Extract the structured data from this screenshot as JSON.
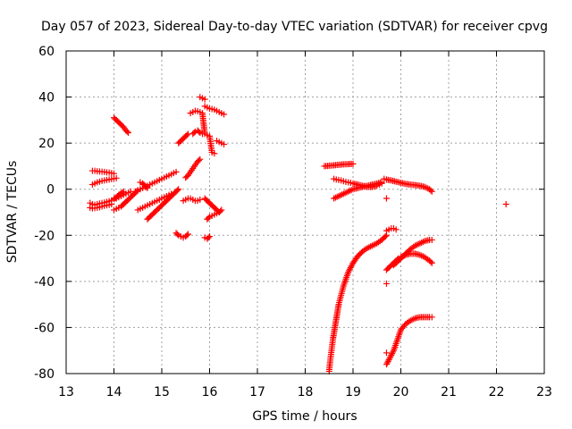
{
  "chart_data": {
    "type": "scatter",
    "title": "Day 057 of 2023, Sidereal Day-to-day VTEC variation (SDTVAR) for receiver cpvg",
    "xlabel": "GPS time / hours",
    "ylabel": "SDTVAR / TECUs",
    "xlim": [
      13,
      23
    ],
    "ylim": [
      -80,
      60
    ],
    "xticks": [
      "13",
      "14",
      "15",
      "16",
      "17",
      "18",
      "19",
      "20",
      "21",
      "22",
      "23"
    ],
    "yticks": [
      "60",
      "40",
      "20",
      "0",
      "-20",
      "-40",
      "-60",
      "-80"
    ],
    "grid": true,
    "marker": "plus",
    "color": "#ff0000",
    "series": [
      {
        "name": "arc-a1",
        "x": [
          13.55,
          13.6,
          13.65,
          13.7,
          13.75,
          13.8,
          13.85,
          13.9,
          13.95,
          14.0
        ],
        "y": [
          8,
          8,
          7.8,
          7.7,
          7.6,
          7.5,
          7.3,
          7.2,
          7.0,
          6.8
        ]
      },
      {
        "name": "arc-a2",
        "x": [
          13.55,
          13.6,
          13.65,
          13.7,
          13.75,
          13.8,
          13.85,
          13.9,
          13.95,
          14.0,
          14.05
        ],
        "y": [
          2,
          2.5,
          3,
          3.3,
          3.6,
          3.8,
          4.0,
          4.2,
          4.4,
          4.6,
          4.8
        ]
      },
      {
        "name": "arc-a3",
        "x": [
          13.5,
          13.55,
          13.6,
          13.65,
          13.7,
          13.75,
          13.8,
          13.85,
          13.9,
          13.95,
          14.0,
          14.05,
          14.1,
          14.15,
          14.2
        ],
        "y": [
          -6,
          -6.5,
          -6.8,
          -6.5,
          -6.2,
          -6,
          -5.8,
          -5.5,
          -5.2,
          -4.8,
          -4.3,
          -3.5,
          -2.5,
          -1.8,
          -1
        ]
      },
      {
        "name": "arc-a4",
        "x": [
          13.5,
          13.55,
          13.6,
          13.65,
          13.7,
          13.75,
          13.8,
          13.85,
          13.9,
          13.95
        ],
        "y": [
          -8,
          -8.3,
          -8.2,
          -8,
          -7.8,
          -7.5,
          -7.2,
          -7,
          -6.8,
          -6.5
        ]
      },
      {
        "name": "arc-b1",
        "x": [
          14.0,
          14.05,
          14.1,
          14.15,
          14.2,
          14.25,
          14.3
        ],
        "y": [
          31,
          30,
          29,
          28,
          27,
          25.5,
          24.5
        ]
      },
      {
        "name": "arc-b2",
        "x": [
          14.0,
          14.05,
          14.1,
          14.15,
          14.2,
          14.25,
          14.3,
          14.35,
          14.4,
          14.45,
          14.5
        ],
        "y": [
          -9,
          -8.5,
          -8,
          -7.5,
          -6.5,
          -5.5,
          -4.5,
          -3.5,
          -2.5,
          -1.5,
          -0.5
        ]
      },
      {
        "name": "arc-b3",
        "x": [
          14.05,
          14.1,
          14.15,
          14.2,
          14.25,
          14.3,
          14.35
        ],
        "y": [
          -4,
          -3.5,
          -3,
          -2.5,
          -2,
          -1.5,
          -1
        ]
      },
      {
        "name": "arc-c1",
        "x": [
          14.45,
          14.5,
          14.55,
          14.6,
          14.65,
          14.7,
          14.75,
          14.8,
          14.85,
          14.9,
          14.95,
          15.0,
          15.05,
          15.1,
          15.15,
          15.2,
          15.25,
          15.3
        ],
        "y": [
          -1,
          -0.5,
          0,
          0.5,
          1,
          1.5,
          2,
          2.5,
          3,
          3.5,
          4,
          4.5,
          5,
          5.5,
          6,
          6.5,
          7,
          7.5
        ]
      },
      {
        "name": "arc-c2",
        "x": [
          14.5,
          14.55,
          14.6,
          14.65,
          14.7,
          14.75,
          14.8,
          14.85,
          14.9,
          14.95,
          15.0,
          15.05,
          15.1,
          15.15,
          15.2
        ],
        "y": [
          -9,
          -8.5,
          -8,
          -7.5,
          -7,
          -6.5,
          -6,
          -5.5,
          -5,
          -4.5,
          -4,
          -3.5,
          -3,
          -2.5,
          -2
        ]
      },
      {
        "name": "arc-c3",
        "x": [
          14.7,
          14.75,
          14.8,
          14.85,
          14.9,
          14.95,
          15.0,
          15.05,
          15.1,
          15.15,
          15.2,
          15.25,
          15.3,
          15.35
        ],
        "y": [
          -13,
          -12,
          -11,
          -10,
          -9,
          -8,
          -7,
          -6,
          -5,
          -4,
          -3,
          -2,
          -1,
          0
        ]
      },
      {
        "name": "arc-c4",
        "x": [
          14.55,
          14.6,
          14.65,
          14.7
        ],
        "y": [
          3,
          2.5,
          1.5,
          0.5
        ]
      },
      {
        "name": "arc-d1",
        "x": [
          15.3,
          15.35,
          15.4,
          15.45,
          15.5,
          15.55
        ],
        "y": [
          -19,
          -20,
          -20.5,
          -21,
          -20.5,
          -19.5
        ]
      },
      {
        "name": "arc-d2",
        "x": [
          15.35,
          15.4,
          15.45,
          15.5,
          15.55
        ],
        "y": [
          20,
          21,
          22,
          23,
          24
        ]
      },
      {
        "name": "arc-d3",
        "x": [
          15.45,
          15.5,
          15.55,
          15.6,
          15.65,
          15.7,
          15.75,
          15.8
        ],
        "y": [
          -5,
          -4.5,
          -4,
          -4,
          -4.5,
          -5,
          -5,
          -4.5
        ]
      },
      {
        "name": "arc-d4",
        "x": [
          15.5,
          15.55,
          15.6,
          15.65,
          15.7,
          15.75,
          15.8
        ],
        "y": [
          5,
          6,
          7.5,
          9,
          10.5,
          12,
          13
        ]
      },
      {
        "name": "arc-d5",
        "x": [
          15.6,
          15.65,
          15.7,
          15.75,
          15.8,
          15.85,
          15.9,
          15.95,
          16.0,
          16.05,
          16.1
        ],
        "y": [
          33,
          33.5,
          34,
          33.8,
          33.5,
          33,
          24,
          23.5,
          23,
          16,
          15.5
        ]
      },
      {
        "name": "arc-d6",
        "x": [
          15.65,
          15.7,
          15.75,
          15.8,
          15.85
        ],
        "y": [
          24,
          25,
          25.5,
          24.5,
          24
        ]
      },
      {
        "name": "arc-e1",
        "x": [
          15.8,
          15.85,
          15.9
        ],
        "y": [
          40,
          39.5,
          39
        ]
      },
      {
        "name": "arc-e2",
        "x": [
          15.9,
          15.95,
          16.0,
          16.05,
          16.1,
          16.15,
          16.2,
          16.25,
          16.3
        ],
        "y": [
          36,
          35.5,
          35,
          34.8,
          34.5,
          34,
          33.5,
          33,
          32.5
        ]
      },
      {
        "name": "arc-e3",
        "x": [
          15.9,
          15.95,
          16.0,
          16.05,
          16.1,
          16.15,
          16.2
        ],
        "y": [
          -4,
          -5,
          -6,
          -7,
          -8,
          -9,
          -10
        ]
      },
      {
        "name": "arc-e4",
        "x": [
          15.95,
          16.0,
          16.05,
          16.1,
          16.15,
          16.2,
          16.25
        ],
        "y": [
          -13,
          -12,
          -11.5,
          -11,
          -10.5,
          -10,
          -9
        ]
      },
      {
        "name": "arc-e5",
        "x": [
          16.15,
          16.2,
          16.25,
          16.3
        ],
        "y": [
          21,
          20.5,
          20,
          19.5
        ]
      },
      {
        "name": "arc-e6",
        "x": [
          15.9,
          15.95,
          16.0
        ],
        "y": [
          -21,
          -21.5,
          -20.5
        ]
      },
      {
        "name": "arc-f1",
        "x": [
          18.4,
          18.5,
          18.6,
          18.7,
          18.8,
          18.9,
          19.0
        ],
        "y": [
          10,
          10.2,
          10.4,
          10.6,
          10.8,
          10.9,
          11
        ]
      },
      {
        "name": "arc-f2",
        "x": [
          18.6,
          18.65,
          18.7,
          18.75,
          18.8,
          18.85,
          18.9,
          18.95,
          19.0,
          19.1,
          19.2,
          19.3,
          19.4,
          19.5,
          19.55,
          19.6
        ],
        "y": [
          4.5,
          4.2,
          4,
          3.8,
          3.5,
          3.2,
          3,
          2.8,
          2.5,
          2,
          1.5,
          1,
          1,
          1.5,
          2,
          2.5
        ]
      },
      {
        "name": "arc-f3",
        "x": [
          18.6,
          18.7,
          18.8,
          18.9,
          19.0,
          19.1,
          19.2,
          19.3,
          19.4,
          19.5,
          19.6
        ],
        "y": [
          -4,
          -3,
          -2,
          -1,
          0,
          0.5,
          1,
          1.5,
          2,
          2.5,
          3
        ]
      },
      {
        "name": "arc-g1",
        "x": [
          18.5,
          18.52,
          18.55,
          18.58,
          18.62,
          18.66,
          18.7,
          18.75,
          18.8,
          18.85,
          18.9,
          18.95,
          19.0,
          19.1,
          19.2,
          19.3,
          19.4,
          19.5,
          19.6,
          19.7
        ],
        "y": [
          -79,
          -75,
          -70,
          -65,
          -60,
          -55,
          -50,
          -46,
          -42,
          -39,
          -36,
          -34,
          -32,
          -29,
          -27,
          -25.5,
          -24.5,
          -23.5,
          -22,
          -20
        ]
      },
      {
        "name": "arc-h1",
        "x": [
          19.65,
          19.7,
          19.8,
          19.9,
          20.0,
          20.1,
          20.2,
          20.3,
          20.4,
          20.5,
          20.6,
          20.65
        ],
        "y": [
          4.5,
          4.2,
          3.8,
          3.3,
          2.8,
          2.3,
          2,
          1.8,
          1.5,
          1,
          0,
          -1
        ]
      },
      {
        "name": "arc-h2",
        "x": [
          19.7,
          19.75,
          19.8,
          19.85,
          19.9
        ],
        "y": [
          -18,
          -17.5,
          -17,
          -17,
          -17.5
        ]
      },
      {
        "name": "arc-h3",
        "x": [
          19.7,
          19.75,
          19.8,
          19.85,
          19.9,
          19.95,
          20.0,
          20.1,
          20.2,
          20.3,
          20.4,
          20.5,
          20.6,
          20.65
        ],
        "y": [
          -35,
          -34,
          -33,
          -32,
          -31,
          -30,
          -29.5,
          -28.5,
          -28,
          -28,
          -28.5,
          -29.5,
          -31,
          -32
        ]
      },
      {
        "name": "arc-h4",
        "x": [
          19.85,
          19.9,
          19.95,
          20.0,
          20.1,
          20.2,
          20.3,
          20.4,
          20.5,
          20.6,
          20.65
        ],
        "y": [
          -33,
          -32,
          -31,
          -30,
          -28,
          -26,
          -24.5,
          -23.5,
          -22.5,
          -22,
          -22
        ]
      },
      {
        "name": "arc-h5",
        "x": [
          19.7,
          19.75,
          19.8,
          19.85,
          19.9,
          19.95,
          20.0,
          20.1,
          20.2,
          20.3,
          20.4,
          20.5,
          20.6,
          20.65
        ],
        "y": [
          -76,
          -74,
          -72,
          -70,
          -67,
          -64,
          -61,
          -58.5,
          -57,
          -56,
          -55.5,
          -55.5,
          -55.5,
          -55.5
        ]
      },
      {
        "name": "arc-h6",
        "x": [
          19.7
        ],
        "y": [
          -71
        ]
      },
      {
        "name": "outliers",
        "x": [
          19.7,
          19.7,
          22.2
        ],
        "y": [
          -41,
          -4,
          -6.5
        ]
      }
    ]
  }
}
